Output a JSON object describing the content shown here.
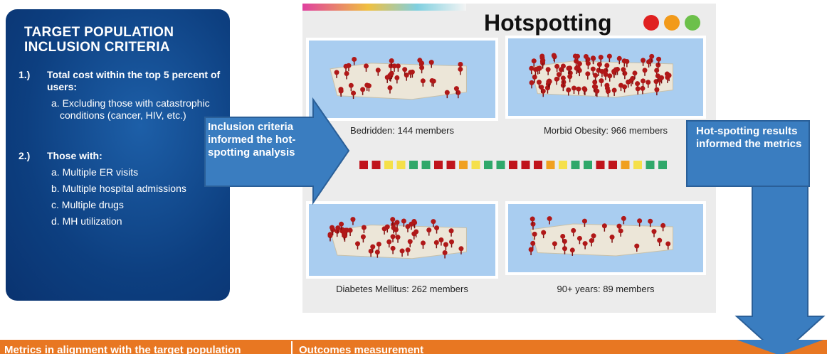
{
  "criteria": {
    "title": "TARGET POPULATION INCLUSION CRITERIA",
    "items": [
      {
        "number": "1.)",
        "text": "Total cost within the top 5 percent of users:",
        "subitems": [
          "a. Excluding those with catastrophic conditions (cancer, HIV, etc.)"
        ]
      },
      {
        "number": "2.)",
        "text": "Those with:",
        "subitems": [
          "a. Multiple ER visits",
          "b. Multiple hospital admissions",
          "c. Multiple drugs",
          "d. MH utilization"
        ]
      }
    ]
  },
  "hotspotting": {
    "title": "Hotspotting",
    "maps": [
      {
        "caption": "Bedridden: 144 members"
      },
      {
        "caption": "Morbid Obesity: 966 members"
      },
      {
        "caption": "Diabetes Mellitus: 262 members"
      },
      {
        "caption": "90+ years: 89 members"
      }
    ]
  },
  "arrows": {
    "left": "Inclusion criteria informed the hot-spotting analysis",
    "right": "Hot-spotting results informed the metrics"
  },
  "footer": {
    "left": "Metrics in alignment with the target population",
    "right": "Outcomes measurement"
  }
}
